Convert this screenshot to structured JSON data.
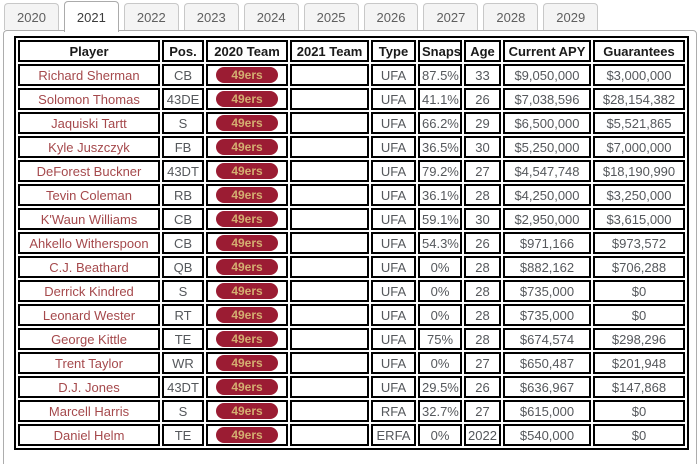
{
  "tabs": {
    "items": [
      "2020",
      "2021",
      "2022",
      "2023",
      "2024",
      "2025",
      "2026",
      "2027",
      "2028",
      "2029"
    ],
    "active": "2021"
  },
  "table": {
    "columns": [
      {
        "key": "player",
        "label": "Player"
      },
      {
        "key": "pos",
        "label": "Pos."
      },
      {
        "key": "team_2020",
        "label": "2020 Team"
      },
      {
        "key": "team_2021",
        "label": "2021 Team"
      },
      {
        "key": "type",
        "label": "Type"
      },
      {
        "key": "snaps",
        "label": "Snaps"
      },
      {
        "key": "age",
        "label": "Age"
      },
      {
        "key": "current_apy",
        "label": "Current APY"
      },
      {
        "key": "guarantees",
        "label": "Guarantees"
      }
    ],
    "rows": [
      {
        "player": "Richard Sherman",
        "pos": "CB",
        "team_2020": "49ers",
        "team_2021": "",
        "type": "UFA",
        "snaps": "87.5%",
        "age": "33",
        "current_apy": "$9,050,000",
        "guarantees": "$3,000,000"
      },
      {
        "player": "Solomon Thomas",
        "pos": "43DE",
        "team_2020": "49ers",
        "team_2021": "",
        "type": "UFA",
        "snaps": "41.1%",
        "age": "26",
        "current_apy": "$7,038,596",
        "guarantees": "$28,154,382"
      },
      {
        "player": "Jaquiski Tartt",
        "pos": "S",
        "team_2020": "49ers",
        "team_2021": "",
        "type": "UFA",
        "snaps": "66.2%",
        "age": "29",
        "current_apy": "$6,500,000",
        "guarantees": "$5,521,865"
      },
      {
        "player": "Kyle Juszczyk",
        "pos": "FB",
        "team_2020": "49ers",
        "team_2021": "",
        "type": "UFA",
        "snaps": "36.5%",
        "age": "30",
        "current_apy": "$5,250,000",
        "guarantees": "$7,000,000"
      },
      {
        "player": "DeForest Buckner",
        "pos": "43DT",
        "team_2020": "49ers",
        "team_2021": "",
        "type": "UFA",
        "snaps": "79.2%",
        "age": "27",
        "current_apy": "$4,547,748",
        "guarantees": "$18,190,990"
      },
      {
        "player": "Tevin Coleman",
        "pos": "RB",
        "team_2020": "49ers",
        "team_2021": "",
        "type": "UFA",
        "snaps": "36.1%",
        "age": "28",
        "current_apy": "$4,250,000",
        "guarantees": "$3,250,000"
      },
      {
        "player": "K'Waun Williams",
        "pos": "CB",
        "team_2020": "49ers",
        "team_2021": "",
        "type": "UFA",
        "snaps": "59.1%",
        "age": "30",
        "current_apy": "$2,950,000",
        "guarantees": "$3,615,000"
      },
      {
        "player": "Ahkello Witherspoon",
        "pos": "CB",
        "team_2020": "49ers",
        "team_2021": "",
        "type": "UFA",
        "snaps": "54.3%",
        "age": "26",
        "current_apy": "$971,166",
        "guarantees": "$973,572"
      },
      {
        "player": "C.J. Beathard",
        "pos": "QB",
        "team_2020": "49ers",
        "team_2021": "",
        "type": "UFA",
        "snaps": "0%",
        "age": "28",
        "current_apy": "$882,162",
        "guarantees": "$706,288"
      },
      {
        "player": "Derrick Kindred",
        "pos": "S",
        "team_2020": "49ers",
        "team_2021": "",
        "type": "UFA",
        "snaps": "0%",
        "age": "28",
        "current_apy": "$735,000",
        "guarantees": "$0"
      },
      {
        "player": "Leonard Wester",
        "pos": "RT",
        "team_2020": "49ers",
        "team_2021": "",
        "type": "UFA",
        "snaps": "0%",
        "age": "28",
        "current_apy": "$735,000",
        "guarantees": "$0"
      },
      {
        "player": "George Kittle",
        "pos": "TE",
        "team_2020": "49ers",
        "team_2021": "",
        "type": "UFA",
        "snaps": "75%",
        "age": "28",
        "current_apy": "$674,574",
        "guarantees": "$298,296"
      },
      {
        "player": "Trent Taylor",
        "pos": "WR",
        "team_2020": "49ers",
        "team_2021": "",
        "type": "UFA",
        "snaps": "0%",
        "age": "27",
        "current_apy": "$650,487",
        "guarantees": "$201,948"
      },
      {
        "player": "D.J. Jones",
        "pos": "43DT",
        "team_2020": "49ers",
        "team_2021": "",
        "type": "UFA",
        "snaps": "29.5%",
        "age": "26",
        "current_apy": "$636,967",
        "guarantees": "$147,868"
      },
      {
        "player": "Marcell Harris",
        "pos": "S",
        "team_2020": "49ers",
        "team_2021": "",
        "type": "RFA",
        "snaps": "32.7%",
        "age": "27",
        "current_apy": "$615,000",
        "guarantees": "$0"
      },
      {
        "player": "Daniel Helm",
        "pos": "TE",
        "team_2020": "49ers",
        "team_2021": "",
        "type": "ERFA",
        "snaps": "0%",
        "age": "2022",
        "current_apy": "$540,000",
        "guarantees": "$0"
      }
    ]
  },
  "colors": {
    "badge_bg": "#9b1c33",
    "badge_text": "#d4ae71",
    "player_text": "#a5494c",
    "cell_text": "#55585c",
    "header_text": "#1a1a1a"
  }
}
